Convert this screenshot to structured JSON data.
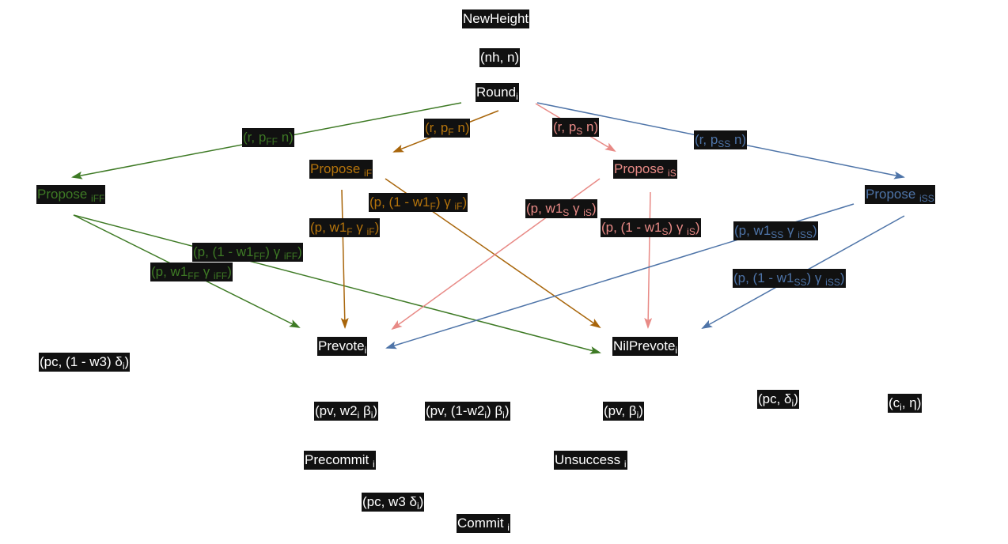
{
  "nodes": {
    "new_height": {
      "text": "NewHeight"
    },
    "round": {
      "text": "Round",
      "sub": "i"
    },
    "propose_iff": {
      "text": "Propose ",
      "sub": "iFF"
    },
    "propose_if": {
      "text": "Propose ",
      "sub": "iF"
    },
    "propose_is": {
      "text": "Propose ",
      "sub": "iS"
    },
    "propose_iss": {
      "text": "Propose ",
      "sub": "iSS"
    },
    "prevote": {
      "text": "Prevote",
      "sub": "i"
    },
    "nilprevote": {
      "text": "NilPrevote",
      "sub": "i"
    },
    "precommit": {
      "text": "Precommit ",
      "sub": "i"
    },
    "unsuccess": {
      "text": "Unsuccess ",
      "sub": "i"
    },
    "commit": {
      "text": "Commit ",
      "sub": "i"
    }
  },
  "edge_labels": {
    "nh_n": {
      "a": "(nh, n)"
    },
    "r_pff_n": {
      "a": "(r, p",
      "s1": "FF",
      "b": " n)"
    },
    "r_pf_n": {
      "a": "(r, p",
      "s1": "F",
      "b": " n)"
    },
    "r_ps_n": {
      "a": "(r, p",
      "s1": "S",
      "b": " n)"
    },
    "r_pss_n": {
      "a": "(r, p",
      "s1": "SS",
      "b": " n)"
    },
    "p_1mw1f": {
      "a": "(p, (1 - w1",
      "s1": "F",
      "b": ") γ ",
      "s2": "iF",
      "c": ")"
    },
    "p_w1f": {
      "a": "(p, w1",
      "s1": "F",
      "b": " γ ",
      "s2": "iF",
      "c": ")"
    },
    "p_w1s": {
      "a": "(p, w1",
      "s1": "S",
      "b": " γ ",
      "s2": "iS",
      "c": ")"
    },
    "p_1mw1s": {
      "a": "(p, (1 - w1",
      "s1": "S",
      "b": ") γ ",
      "s2": "iS",
      "c": ")"
    },
    "p_1mw1ff": {
      "a": "(p, (1 - w1",
      "s1": "FF",
      "b": ") γ ",
      "s2": "iFF",
      "c": ")"
    },
    "p_w1ff": {
      "a": "(p, w1",
      "s1": "FF",
      "b": " γ ",
      "s2": "iFF",
      "c": ")"
    },
    "p_w1ss": {
      "a": "(p, w1",
      "s1": "SS",
      "b": " γ ",
      "s2": "iSS",
      "c": ")"
    },
    "p_1mw1ss": {
      "a": "(p, (1 - w1",
      "s1": "SS",
      "b": ") γ ",
      "s2": "iSS",
      "c": ")"
    },
    "pc_1mw3": {
      "a": "(pc, (1 - w3) δ",
      "s1": "i",
      "b": ")"
    },
    "pv_w2": {
      "a": "(pv, w2",
      "s1": "i",
      "b": " β",
      "s2": "i",
      "c": ")"
    },
    "pv_1mw2": {
      "a": "(pv, (1-w2",
      "s1": "i",
      "b": ") β",
      "s2": "i",
      "c": ")"
    },
    "pv_beta": {
      "a": "(pv, β",
      "s1": "i",
      "b": ")"
    },
    "pc_delta": {
      "a": "(pc, δ",
      "s1": "i",
      "b": ")"
    },
    "ci_eta": {
      "a": "(c",
      "s1": "i",
      "b": ", η)"
    },
    "pc_w3": {
      "a": "(pc, w3 δ",
      "s1": "i",
      "b": ")"
    }
  },
  "colors": {
    "green": "#3e7a25",
    "orange": "#a8650a",
    "pink": "#e88a86",
    "blue": "#4e74a8",
    "box": "#111111"
  }
}
